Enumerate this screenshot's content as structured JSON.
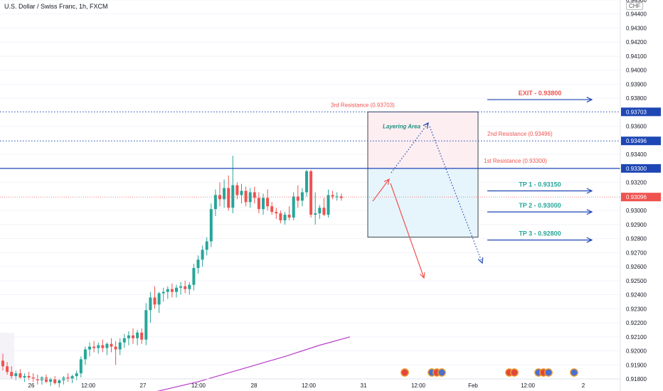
{
  "header": {
    "title": "U.S. Dollar / Swiss Franc, 1h, FXCM",
    "currency": "CHF"
  },
  "colors": {
    "up": "#26a69a",
    "down": "#ef5350",
    "blue": "#1e47b5",
    "grid": "#f0f3fa",
    "ma": "#b83cc8"
  },
  "chart_data": {
    "type": "candlestick",
    "ylim": [
      0.918,
      0.945
    ],
    "yticks": [
      {
        "value": 0.945,
        "label": "0.94500"
      },
      {
        "value": 0.944,
        "label": "0.94400"
      },
      {
        "value": 0.943,
        "label": "0.94300"
      },
      {
        "value": 0.942,
        "label": "0.94200"
      },
      {
        "value": 0.941,
        "label": "0.94100"
      },
      {
        "value": 0.94,
        "label": "0.94000"
      },
      {
        "value": 0.939,
        "label": "0.93900"
      },
      {
        "value": 0.938,
        "label": "0.93800"
      },
      {
        "value": 0.936,
        "label": "0.93600"
      },
      {
        "value": 0.934,
        "label": "0.93400"
      },
      {
        "value": 0.932,
        "label": "0.93200"
      },
      {
        "value": 0.93,
        "label": "0.93000"
      },
      {
        "value": 0.929,
        "label": "0.92900"
      },
      {
        "value": 0.928,
        "label": "0.92800"
      },
      {
        "value": 0.927,
        "label": "0.92700"
      },
      {
        "value": 0.926,
        "label": "0.92600"
      },
      {
        "value": 0.925,
        "label": "0.92500"
      },
      {
        "value": 0.924,
        "label": "0.92400"
      },
      {
        "value": 0.923,
        "label": "0.92300"
      },
      {
        "value": 0.922,
        "label": "0.92200"
      },
      {
        "value": 0.921,
        "label": "0.92100"
      },
      {
        "value": 0.92,
        "label": "0.92000"
      },
      {
        "value": 0.919,
        "label": "0.91900"
      },
      {
        "value": 0.918,
        "label": "0.91800"
      }
    ],
    "xlabels": [
      "26",
      "12:00",
      "27",
      "12:00",
      "28",
      "12:00",
      "31",
      "12:00",
      "Feb",
      "12:00",
      "2"
    ],
    "price_tags": [
      {
        "value": 0.93703,
        "label": "0.93703"
      },
      {
        "value": 0.93496,
        "label": "0.93496"
      },
      {
        "value": 0.933,
        "label": "0.93300"
      },
      {
        "value": 0.93096,
        "label": "0.93096"
      }
    ],
    "candles": [
      {
        "o": 0.9193,
        "h": 0.9198,
        "l": 0.9186,
        "c": 0.9189
      },
      {
        "o": 0.9189,
        "h": 0.9192,
        "l": 0.9183,
        "c": 0.9185
      },
      {
        "o": 0.9185,
        "h": 0.9189,
        "l": 0.918,
        "c": 0.9182
      },
      {
        "o": 0.9182,
        "h": 0.9186,
        "l": 0.9179,
        "c": 0.9184
      },
      {
        "o": 0.9184,
        "h": 0.9187,
        "l": 0.918,
        "c": 0.9181
      },
      {
        "o": 0.9181,
        "h": 0.9184,
        "l": 0.9178,
        "c": 0.9182
      },
      {
        "o": 0.9182,
        "h": 0.9185,
        "l": 0.9179,
        "c": 0.9181
      },
      {
        "o": 0.9181,
        "h": 0.9184,
        "l": 0.9178,
        "c": 0.918
      },
      {
        "o": 0.918,
        "h": 0.9183,
        "l": 0.9176,
        "c": 0.9179
      },
      {
        "o": 0.9179,
        "h": 0.9182,
        "l": 0.9176,
        "c": 0.9181
      },
      {
        "o": 0.9181,
        "h": 0.9183,
        "l": 0.9177,
        "c": 0.9178
      },
      {
        "o": 0.9178,
        "h": 0.9181,
        "l": 0.9175,
        "c": 0.918
      },
      {
        "o": 0.918,
        "h": 0.9182,
        "l": 0.9176,
        "c": 0.9177
      },
      {
        "o": 0.9177,
        "h": 0.918,
        "l": 0.9174,
        "c": 0.9179
      },
      {
        "o": 0.9179,
        "h": 0.9182,
        "l": 0.9176,
        "c": 0.9181
      },
      {
        "o": 0.9181,
        "h": 0.9184,
        "l": 0.9178,
        "c": 0.918
      },
      {
        "o": 0.918,
        "h": 0.9183,
        "l": 0.9177,
        "c": 0.9182
      },
      {
        "o": 0.9182,
        "h": 0.9186,
        "l": 0.9179,
        "c": 0.9184
      },
      {
        "o": 0.9184,
        "h": 0.9196,
        "l": 0.9181,
        "c": 0.9194
      },
      {
        "o": 0.9194,
        "h": 0.9203,
        "l": 0.919,
        "c": 0.9201
      },
      {
        "o": 0.9201,
        "h": 0.9206,
        "l": 0.9196,
        "c": 0.9203
      },
      {
        "o": 0.9203,
        "h": 0.9207,
        "l": 0.9199,
        "c": 0.9202
      },
      {
        "o": 0.9202,
        "h": 0.9206,
        "l": 0.9198,
        "c": 0.9204
      },
      {
        "o": 0.9204,
        "h": 0.9208,
        "l": 0.9199,
        "c": 0.9202
      },
      {
        "o": 0.9202,
        "h": 0.9206,
        "l": 0.9197,
        "c": 0.9205
      },
      {
        "o": 0.9205,
        "h": 0.9209,
        "l": 0.9199,
        "c": 0.9203
      },
      {
        "o": 0.9203,
        "h": 0.9207,
        "l": 0.919,
        "c": 0.9201
      },
      {
        "o": 0.9201,
        "h": 0.9209,
        "l": 0.9197,
        "c": 0.9206
      },
      {
        "o": 0.9206,
        "h": 0.9212,
        "l": 0.9202,
        "c": 0.9209
      },
      {
        "o": 0.9209,
        "h": 0.9214,
        "l": 0.9204,
        "c": 0.9211
      },
      {
        "o": 0.9211,
        "h": 0.9216,
        "l": 0.9205,
        "c": 0.9209
      },
      {
        "o": 0.9209,
        "h": 0.9215,
        "l": 0.9204,
        "c": 0.9213
      },
      {
        "o": 0.9213,
        "h": 0.9216,
        "l": 0.9205,
        "c": 0.9208
      },
      {
        "o": 0.9208,
        "h": 0.9234,
        "l": 0.9204,
        "c": 0.9229
      },
      {
        "o": 0.9229,
        "h": 0.9242,
        "l": 0.922,
        "c": 0.9238
      },
      {
        "o": 0.9238,
        "h": 0.9246,
        "l": 0.923,
        "c": 0.9233
      },
      {
        "o": 0.9233,
        "h": 0.9242,
        "l": 0.9227,
        "c": 0.9241
      },
      {
        "o": 0.9241,
        "h": 0.9245,
        "l": 0.9235,
        "c": 0.9242
      },
      {
        "o": 0.9242,
        "h": 0.9246,
        "l": 0.9237,
        "c": 0.9244
      },
      {
        "o": 0.9244,
        "h": 0.9248,
        "l": 0.9238,
        "c": 0.9242
      },
      {
        "o": 0.9242,
        "h": 0.9247,
        "l": 0.9238,
        "c": 0.9245
      },
      {
        "o": 0.9245,
        "h": 0.9249,
        "l": 0.924,
        "c": 0.9246
      },
      {
        "o": 0.9246,
        "h": 0.925,
        "l": 0.9241,
        "c": 0.9244
      },
      {
        "o": 0.9244,
        "h": 0.9249,
        "l": 0.924,
        "c": 0.9247
      },
      {
        "o": 0.9247,
        "h": 0.9262,
        "l": 0.9243,
        "c": 0.9259
      },
      {
        "o": 0.9259,
        "h": 0.9268,
        "l": 0.9255,
        "c": 0.9265
      },
      {
        "o": 0.9265,
        "h": 0.9275,
        "l": 0.926,
        "c": 0.9272
      },
      {
        "o": 0.9272,
        "h": 0.9281,
        "l": 0.9268,
        "c": 0.9278
      },
      {
        "o": 0.9278,
        "h": 0.9305,
        "l": 0.9274,
        "c": 0.9301
      },
      {
        "o": 0.9301,
        "h": 0.9315,
        "l": 0.9296,
        "c": 0.9311
      },
      {
        "o": 0.9311,
        "h": 0.932,
        "l": 0.9303,
        "c": 0.9308
      },
      {
        "o": 0.9308,
        "h": 0.9322,
        "l": 0.9302,
        "c": 0.9316
      },
      {
        "o": 0.9316,
        "h": 0.9325,
        "l": 0.93,
        "c": 0.9302
      },
      {
        "o": 0.9302,
        "h": 0.9339,
        "l": 0.9298,
        "c": 0.9318
      },
      {
        "o": 0.9318,
        "h": 0.932,
        "l": 0.9308,
        "c": 0.9311
      },
      {
        "o": 0.9311,
        "h": 0.9319,
        "l": 0.9305,
        "c": 0.9314
      },
      {
        "o": 0.9314,
        "h": 0.9317,
        "l": 0.9303,
        "c": 0.9306
      },
      {
        "o": 0.9306,
        "h": 0.9316,
        "l": 0.9302,
        "c": 0.9313
      },
      {
        "o": 0.9313,
        "h": 0.9317,
        "l": 0.9305,
        "c": 0.9309
      },
      {
        "o": 0.9309,
        "h": 0.9313,
        "l": 0.9298,
        "c": 0.9301
      },
      {
        "o": 0.9301,
        "h": 0.9312,
        "l": 0.9297,
        "c": 0.9309
      },
      {
        "o": 0.9309,
        "h": 0.9315,
        "l": 0.93,
        "c": 0.9303
      },
      {
        "o": 0.9303,
        "h": 0.9306,
        "l": 0.9297,
        "c": 0.9299
      },
      {
        "o": 0.9299,
        "h": 0.9302,
        "l": 0.9294,
        "c": 0.9298
      },
      {
        "o": 0.9298,
        "h": 0.93,
        "l": 0.9291,
        "c": 0.9293
      },
      {
        "o": 0.9293,
        "h": 0.9299,
        "l": 0.929,
        "c": 0.9297
      },
      {
        "o": 0.9297,
        "h": 0.9303,
        "l": 0.9293,
        "c": 0.9295
      },
      {
        "o": 0.9295,
        "h": 0.9313,
        "l": 0.9293,
        "c": 0.931
      },
      {
        "o": 0.931,
        "h": 0.9318,
        "l": 0.9302,
        "c": 0.9307
      },
      {
        "o": 0.9307,
        "h": 0.9316,
        "l": 0.9303,
        "c": 0.9313
      },
      {
        "o": 0.9313,
        "h": 0.9329,
        "l": 0.931,
        "c": 0.9328
      },
      {
        "o": 0.9328,
        "h": 0.9329,
        "l": 0.9295,
        "c": 0.9297
      },
      {
        "o": 0.9297,
        "h": 0.9313,
        "l": 0.929,
        "c": 0.9298
      },
      {
        "o": 0.9298,
        "h": 0.9304,
        "l": 0.9294,
        "c": 0.9302
      },
      {
        "o": 0.9302,
        "h": 0.9309,
        "l": 0.9296,
        "c": 0.9297
      },
      {
        "o": 0.9297,
        "h": 0.9315,
        "l": 0.9295,
        "c": 0.9311
      },
      {
        "o": 0.9311,
        "h": 0.9314,
        "l": 0.9308,
        "c": 0.931
      },
      {
        "o": 0.931,
        "h": 0.9313,
        "l": 0.9307,
        "c": 0.931
      },
      {
        "o": 0.931,
        "h": 0.9312,
        "l": 0.9307,
        "c": 0.9309
      }
    ],
    "moving_average": [
      {
        "bar": 34,
        "value": 0.917
      },
      {
        "bar": 45,
        "value": 0.9178
      },
      {
        "bar": 55,
        "value": 0.9187
      },
      {
        "bar": 65,
        "value": 0.9196
      },
      {
        "bar": 73,
        "value": 0.9204
      },
      {
        "bar": 80,
        "value": 0.921
      }
    ],
    "levels": [
      {
        "label": "3rd Resistance (0.93703)",
        "value": 0.93703,
        "style": "dotted"
      },
      {
        "label": "2nd Resistance (0.93496)",
        "value": 0.93496,
        "style": "dotted"
      },
      {
        "label": "1st Resistance (0.93300)",
        "value": 0.933,
        "style": "solid"
      }
    ],
    "targets": [
      {
        "label": "EXIT - 0.93800",
        "value": 0.938,
        "color": "#ef5350"
      },
      {
        "label": "TP 1 - 0.93150",
        "value": 0.9315,
        "color": "#26a69a"
      },
      {
        "label": "TP 2 - 0.93000",
        "value": 0.93,
        "color": "#26a69a"
      },
      {
        "label": "TP 3 - 0.92800",
        "value": 0.928,
        "color": "#26a69a"
      }
    ],
    "zone": {
      "top": 0.93703,
      "mid": 0.933,
      "bottom": 0.9281,
      "label": "Layering Area"
    }
  }
}
